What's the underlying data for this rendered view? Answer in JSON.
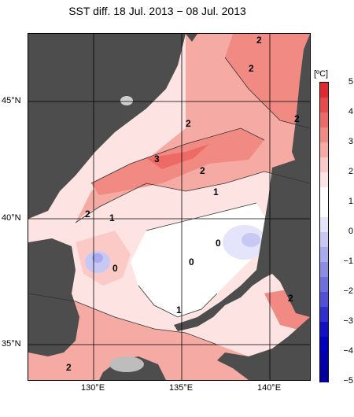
{
  "title": "SST diff. 18 Jul. 2013 − 08 Jul. 2013",
  "lat_labels": [
    "45°N",
    "40°N",
    "35°N"
  ],
  "lon_labels": [
    "130°E",
    "135°E",
    "140°E"
  ],
  "colorbar": {
    "unit": "[ºC]",
    "ticks": [
      "5",
      "4",
      "3",
      "2",
      "1",
      "0",
      "−1",
      "−2",
      "−3",
      "−4",
      "−5"
    ],
    "colors": [
      "#e0282d",
      "#e84a4a",
      "#ee6a66",
      "#f28a84",
      "#f6aaa4",
      "#fbcac6",
      "#fde4e2",
      "#ffffff",
      "#ffffff",
      "#e4e4fb",
      "#c8c8f4",
      "#aaaaee",
      "#8c8ce6",
      "#6e6edf",
      "#5050d8",
      "#3030d0",
      "#1010c8",
      "#0000c0",
      "#0000b0",
      "#0000a0"
    ]
  },
  "contour_labels": [
    "2",
    "2",
    "2",
    "2",
    "3",
    "2",
    "1",
    "2",
    "1",
    "0",
    "0",
    "0",
    "1",
    "2",
    "2",
    "2"
  ]
}
